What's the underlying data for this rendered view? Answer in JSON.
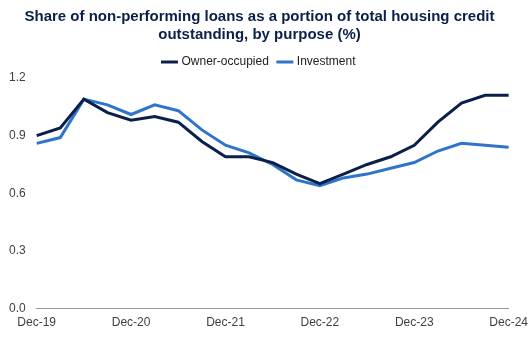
{
  "chart_data": {
    "type": "line",
    "title": [
      "Share of non-performing loans as a portion of total housing credit",
      "outstanding, by purpose (%)"
    ],
    "categories": [
      "Dec-19",
      null,
      null,
      null,
      "Dec-20",
      null,
      null,
      null,
      "Dec-21",
      null,
      null,
      null,
      "Dec-22",
      null,
      null,
      null,
      "Dec-23",
      null,
      null,
      null,
      "Dec-24"
    ],
    "series": [
      {
        "name": "Owner-occupied",
        "color": "#0b1f4b",
        "values": [
          0.9,
          0.94,
          1.09,
          1.02,
          0.98,
          1.0,
          0.97,
          0.87,
          0.79,
          0.79,
          0.76,
          0.7,
          0.65,
          0.7,
          0.75,
          0.79,
          0.85,
          0.97,
          1.07,
          1.11,
          1.11
        ]
      },
      {
        "name": "Investment",
        "color": "#2e75c9",
        "values": [
          0.86,
          0.89,
          1.09,
          1.06,
          1.01,
          1.06,
          1.03,
          0.93,
          0.85,
          0.81,
          0.75,
          0.67,
          0.64,
          0.68,
          0.7,
          0.73,
          0.76,
          0.82,
          0.86,
          0.85,
          0.84
        ]
      }
    ],
    "ylim": [
      0,
      1.2
    ],
    "yticks": [
      {
        "value": 0,
        "label": "0.0"
      },
      0.3,
      0.6,
      0.9,
      1.2
    ],
    "grid": false,
    "legend": "top"
  }
}
